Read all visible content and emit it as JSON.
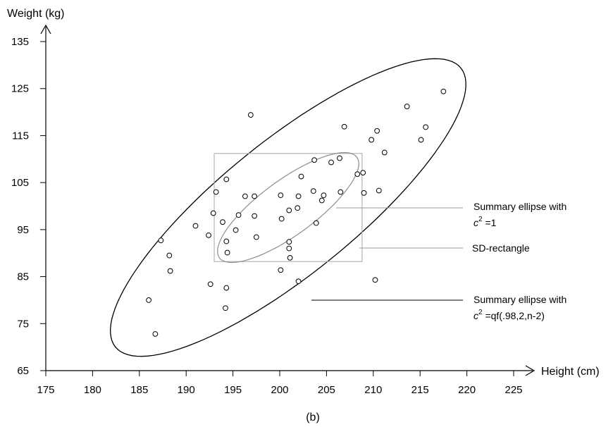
{
  "chart_data": {
    "type": "scatter",
    "caption": "(b)",
    "xlabel": "Height (cm)",
    "ylabel": "Weight (kg)",
    "xlim": [
      175,
      225
    ],
    "ylim": [
      65,
      135
    ],
    "xticks": [
      175,
      180,
      185,
      190,
      195,
      200,
      205,
      210,
      215,
      220,
      225
    ],
    "yticks": [
      65,
      75,
      85,
      95,
      105,
      115,
      125,
      135
    ],
    "grid": false,
    "points": [
      [
        186.0,
        80.0
      ],
      [
        186.7,
        72.8
      ],
      [
        187.3,
        92.7
      ],
      [
        188.2,
        89.5
      ],
      [
        188.3,
        86.2
      ],
      [
        191.0,
        95.8
      ],
      [
        192.4,
        93.8
      ],
      [
        192.6,
        83.4
      ],
      [
        192.9,
        98.5
      ],
      [
        193.2,
        103.0
      ],
      [
        193.9,
        96.6
      ],
      [
        194.2,
        78.3
      ],
      [
        194.3,
        92.5
      ],
      [
        194.3,
        82.6
      ],
      [
        194.4,
        90.1
      ],
      [
        194.3,
        105.7
      ],
      [
        195.3,
        94.9
      ],
      [
        195.6,
        98.1
      ],
      [
        196.3,
        102.1
      ],
      [
        196.9,
        119.4
      ],
      [
        197.3,
        102.1
      ],
      [
        197.3,
        97.9
      ],
      [
        197.5,
        93.4
      ],
      [
        200.1,
        102.3
      ],
      [
        200.2,
        97.3
      ],
      [
        200.1,
        86.4
      ],
      [
        201.0,
        99.1
      ],
      [
        201.0,
        92.4
      ],
      [
        201.0,
        91.0
      ],
      [
        201.1,
        89.0
      ],
      [
        201.9,
        99.6
      ],
      [
        202.0,
        102.1
      ],
      [
        202.0,
        84.0
      ],
      [
        202.3,
        106.3
      ],
      [
        203.6,
        103.2
      ],
      [
        203.7,
        109.8
      ],
      [
        203.9,
        96.4
      ],
      [
        204.5,
        101.2
      ],
      [
        204.7,
        102.3
      ],
      [
        205.5,
        109.3
      ],
      [
        206.4,
        110.2
      ],
      [
        206.5,
        103.0
      ],
      [
        206.9,
        116.9
      ],
      [
        208.3,
        106.8
      ],
      [
        208.9,
        107.1
      ],
      [
        209.0,
        102.8
      ],
      [
        209.8,
        114.1
      ],
      [
        210.2,
        84.3
      ],
      [
        210.4,
        116.0
      ],
      [
        210.6,
        103.3
      ],
      [
        211.2,
        111.4
      ],
      [
        213.6,
        121.2
      ],
      [
        215.1,
        114.1
      ],
      [
        215.6,
        116.8
      ],
      [
        217.5,
        124.4
      ]
    ],
    "annotations": [
      {
        "line1": "Summary ellipse with",
        "base": "c",
        "sup": "2",
        "rest": " =1"
      },
      {
        "text": "SD-rectangle"
      },
      {
        "line1": "Summary ellipse with",
        "base": "c",
        "sup": "2",
        "rest": " =qf(.98,2,n-2)"
      }
    ],
    "sd_rectangle": {
      "x": [
        193.0,
        208.8
      ],
      "y": [
        88.2,
        111.2
      ]
    },
    "ellipse_c1": {
      "cx": 200.9,
      "cy": 99.7,
      "extreme_points": [
        [
          195.2,
          91.4
        ],
        [
          206.6,
          108.0
        ],
        [
          193.1,
          91.0
        ],
        [
          208.7,
          108.5
        ]
      ]
    },
    "ellipse_c98": {
      "center": [
        200.9,
        99.7
      ],
      "extent_x": [
        181.5,
        221.2
      ],
      "extent_y": [
        67.6,
        131.4
      ]
    },
    "colors": {
      "points": "#000000",
      "small_ellipse": "#8c8c8c",
      "rectangle": "#b4b4b4",
      "large_ellipse": "#000000",
      "leader_lines": "#9a9a9a"
    }
  }
}
